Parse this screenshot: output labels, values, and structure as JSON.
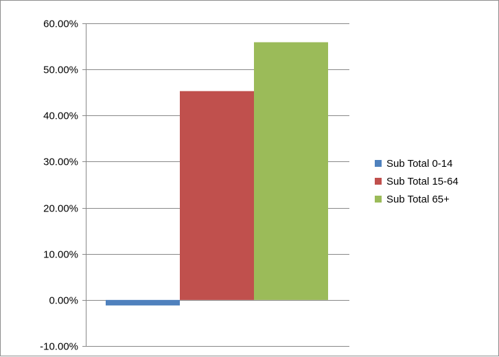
{
  "chart_data": {
    "type": "bar",
    "title": "",
    "xlabel": "",
    "ylabel": "",
    "categories": [
      ""
    ],
    "series": [
      {
        "name": "Sub Total 0-14",
        "values": [
          -1.2
        ],
        "color": "#4f81bd"
      },
      {
        "name": "Sub Total 15-64",
        "values": [
          45.3
        ],
        "color": "#c0504d"
      },
      {
        "name": "Sub Total 65+",
        "values": [
          55.9
        ],
        "color": "#9bbb59"
      }
    ],
    "ylim": [
      -10,
      60
    ],
    "y_ticks": [
      {
        "value": -10,
        "label": "-10.00%"
      },
      {
        "value": 0,
        "label": "0.00%"
      },
      {
        "value": 10,
        "label": "10.00%"
      },
      {
        "value": 20,
        "label": "20.00%"
      },
      {
        "value": 30,
        "label": "30.00%"
      },
      {
        "value": 40,
        "label": "40.00%"
      },
      {
        "value": 50,
        "label": "50.00%"
      },
      {
        "value": 60,
        "label": "60.00%"
      }
    ],
    "grid": true,
    "legend_position": "right"
  }
}
